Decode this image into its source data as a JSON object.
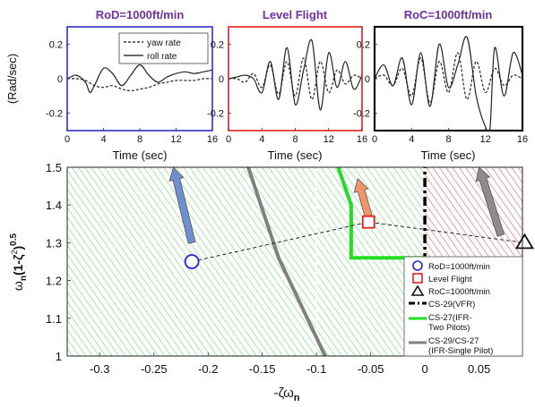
{
  "chart_data": [
    {
      "type": "line",
      "title": "RoD=1000ft/min",
      "frame_color": "#2e2ec8",
      "xlabel": "Time (sec)",
      "ylabel": "(Rad/sec)",
      "xlim": [
        0,
        16
      ],
      "ylim": [
        -0.3,
        0.3
      ],
      "xticks": [
        0,
        4,
        8,
        12,
        16
      ],
      "yticks": [
        -0.2,
        0,
        0.2
      ],
      "ytick_labels": [
        "-0.2",
        "0",
        "0.2"
      ],
      "legend": [
        "yaw rate",
        "roll rate"
      ],
      "series": [
        {
          "name": "yaw rate",
          "style": "dashed",
          "x": [
            0,
            1,
            2,
            3,
            4,
            5,
            6,
            7,
            8,
            9,
            10,
            11,
            12,
            13,
            14,
            15,
            16
          ],
          "y": [
            0,
            0,
            -0.01,
            -0.04,
            -0.05,
            -0.04,
            -0.06,
            -0.07,
            -0.06,
            -0.05,
            -0.03,
            -0.02,
            -0.01,
            -0.01,
            -0.01,
            0,
            0
          ]
        },
        {
          "name": "roll rate",
          "style": "solid",
          "x": [
            0,
            1,
            2,
            2.5,
            3,
            4,
            5,
            6,
            7,
            8,
            9,
            10,
            11,
            12,
            13,
            14,
            15,
            16
          ],
          "y": [
            0,
            0.02,
            -0.02,
            -0.08,
            -0.04,
            0.06,
            0.03,
            -0.04,
            0.02,
            0.08,
            0.02,
            -0.02,
            0.01,
            0.03,
            0.04,
            0.03,
            0.04,
            0.05
          ]
        }
      ]
    },
    {
      "type": "line",
      "title": "Level Flight",
      "frame_color": "#e02020",
      "xlabel": "Time (sec)",
      "xlim": [
        0,
        16
      ],
      "ylim": [
        -0.3,
        0.3
      ],
      "xticks": [
        0,
        4,
        8,
        12,
        16
      ],
      "yticks": [
        -0.2,
        0,
        0.2
      ],
      "ytick_labels": [
        "-0.2",
        "0",
        "0.2"
      ],
      "series": [
        {
          "name": "yaw rate",
          "style": "dashed",
          "x": [
            0,
            1,
            2,
            3,
            4,
            5,
            6,
            7,
            8,
            9,
            10,
            11,
            12,
            13,
            14,
            15,
            16
          ],
          "y": [
            0,
            0,
            -0.02,
            0.03,
            -0.05,
            0.08,
            -0.09,
            0.1,
            -0.1,
            0.12,
            -0.12,
            0.1,
            -0.08,
            0.05,
            -0.03,
            0.02,
            0
          ]
        },
        {
          "name": "roll rate",
          "style": "solid",
          "x": [
            0,
            1,
            2,
            3,
            4,
            5,
            6,
            7,
            8,
            9,
            10,
            11,
            12,
            13,
            14,
            15,
            16
          ],
          "y": [
            0,
            0.01,
            0.02,
            0,
            -0.08,
            0.1,
            -0.12,
            0.18,
            -0.15,
            0.05,
            0.22,
            -0.18,
            0.15,
            -0.05,
            0.1,
            -0.06,
            0.02
          ]
        }
      ]
    },
    {
      "type": "line",
      "title": "RoC=1000ft/min",
      "frame_color": "#111111",
      "xlabel": "Time (sec)",
      "xlim": [
        0,
        16
      ],
      "ylim": [
        -0.3,
        0.3
      ],
      "xticks": [
        0,
        4,
        8,
        12,
        16
      ],
      "yticks": [
        -0.2,
        0,
        0.2
      ],
      "ytick_labels": [
        "-0.2",
        "0",
        "0.2"
      ],
      "series": [
        {
          "name": "yaw rate",
          "style": "dashed",
          "x": [
            0,
            1,
            2,
            3,
            4,
            5,
            6,
            7,
            8,
            9,
            10,
            11,
            12,
            13,
            14,
            15,
            16
          ],
          "y": [
            0,
            0.02,
            -0.04,
            0.06,
            -0.1,
            0.12,
            -0.14,
            0.1,
            -0.08,
            0.15,
            -0.12,
            0.1,
            -0.08,
            0.06,
            -0.04,
            0.02,
            0
          ]
        },
        {
          "name": "roll rate",
          "style": "solid",
          "x": [
            0,
            1,
            2,
            3,
            4,
            5,
            6,
            7,
            8,
            9,
            10,
            11,
            12,
            12.5,
            13,
            14,
            15,
            16
          ],
          "y": [
            0,
            0.08,
            -0.04,
            0.12,
            -0.15,
            0.15,
            -0.16,
            0.2,
            -0.05,
            0.08,
            0.24,
            -0.1,
            -0.28,
            -0.28,
            0.18,
            -0.1,
            0.15,
            0.02
          ]
        }
      ]
    },
    {
      "type": "scatter",
      "xlabel": "-ζω",
      "xlabel_sub": "n",
      "ylabel": "ω",
      "ylabel_sub": "n",
      "ylabel_rest": "(1-ζ",
      "ylabel_sup": "2",
      "ylabel_end": ")",
      "ylabel_pow": "0.5",
      "xlim": [
        -0.33,
        0.09
      ],
      "ylim": [
        1.0,
        1.5
      ],
      "xticks": [
        -0.3,
        -0.25,
        -0.2,
        -0.15,
        -0.1,
        -0.05,
        0,
        0.05
      ],
      "xtick_labels": [
        "-0.3",
        "-0.25",
        "-0.2",
        "-0.15",
        "-0.1",
        "-0.05",
        "0",
        "0.05"
      ],
      "yticks": [
        1.0,
        1.1,
        1.2,
        1.3,
        1.4,
        1.5
      ],
      "ytick_labels": [
        "1",
        "1.1",
        "1.2",
        "1.3",
        "1.4",
        "1.5"
      ],
      "points": [
        {
          "name": "RoD=1000ft/min",
          "marker": "circle",
          "color": "#2222dd",
          "x": -0.215,
          "y": 1.25
        },
        {
          "name": "Level Flight",
          "marker": "square",
          "color": "#e02020",
          "x": -0.052,
          "y": 1.355
        },
        {
          "name": "RoC=1000ft/min",
          "marker": "triangle",
          "color": "#111111",
          "x": 0.092,
          "y": 1.3
        }
      ],
      "boundaries": [
        {
          "name": "CS-29(VFR)",
          "style": "dashdot",
          "color": "#000000",
          "x": [
            0,
            0
          ],
          "y": [
            1.0,
            1.5
          ]
        },
        {
          "name": "CS-27(IFR-Two Pilots)",
          "style": "solid",
          "color": "#22dd22",
          "x": [
            -0.08,
            -0.068,
            -0.068,
            0,
            0
          ],
          "y": [
            1.5,
            1.4,
            1.26,
            1.26,
            1.0
          ]
        },
        {
          "name": "CS-29/CS-27 (IFR-Single Pilot)",
          "style": "solid",
          "color": "#808080",
          "x": [
            -0.163,
            -0.135,
            -0.092
          ],
          "y": [
            1.5,
            1.26,
            1.0
          ]
        }
      ],
      "legend_entries": [
        "RoD=1000ft/min",
        "Level Flight",
        "RoC=1000ft/min",
        "CS-29(VFR)",
        "CS-27(IFR-",
        "Two Pilots)",
        "CS-29/CS-27",
        "(IFR-Single Pilot)"
      ],
      "colors": {
        "green_region": "#5cd65c",
        "red_region": "#e04848",
        "arrow_blue": "#6e8fd0",
        "arrow_orange": "#f2956a",
        "arrow_gray": "#8c8c8c"
      }
    }
  ]
}
